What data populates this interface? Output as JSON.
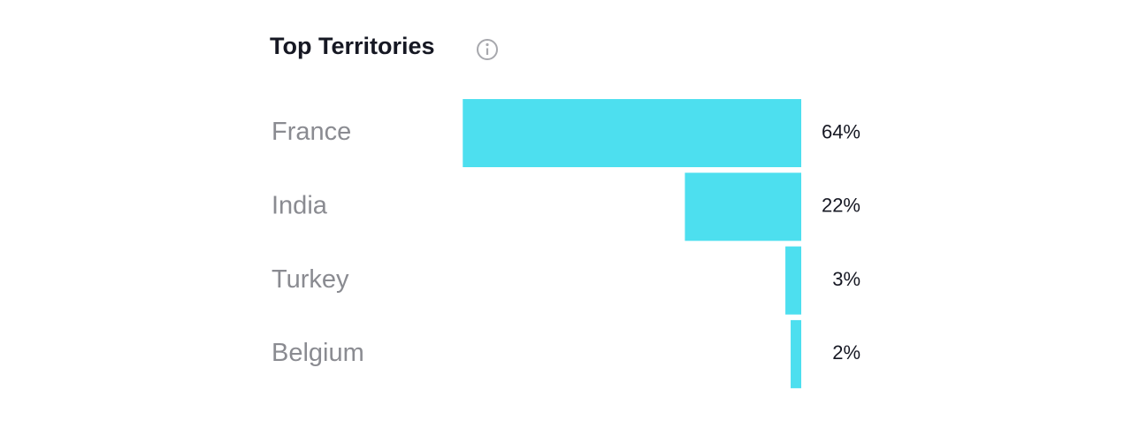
{
  "chart_data": {
    "type": "bar",
    "orientation": "horizontal",
    "title": "Top Territories",
    "categories": [
      "France",
      "India",
      "Turkey",
      "Belgium"
    ],
    "values": [
      64,
      22,
      3,
      2
    ],
    "value_labels": [
      "64%",
      "22%",
      "3%",
      "2%"
    ],
    "color": "#4ddfef"
  }
}
